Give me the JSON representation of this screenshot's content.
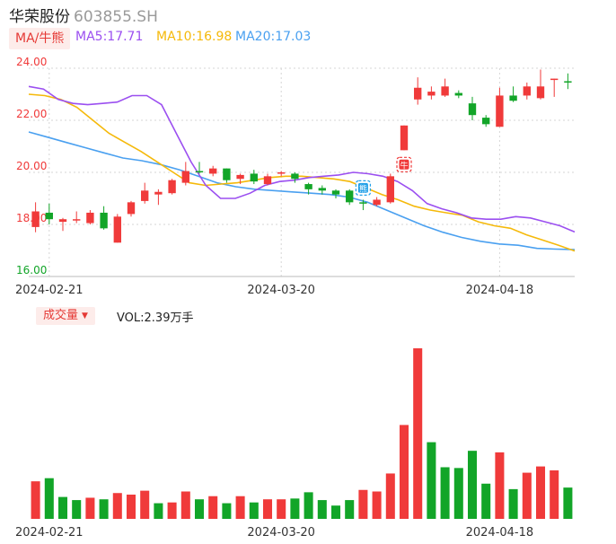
{
  "header": {
    "name": "华荣股份",
    "code": "603855.SH"
  },
  "ma_legend": {
    "tag": "MA/牛熊",
    "ma5": "MA5:17.71",
    "ma10": "MA10:16.98",
    "ma20": "MA20:17.03",
    "colors": {
      "ma5": "#9b4ff0",
      "ma10": "#f5b90a",
      "ma20": "#4aa0f0"
    }
  },
  "volume_panel": {
    "tag": "成交量",
    "vol_text": "VOL:2.39万手"
  },
  "colors": {
    "up": "#f03a3a",
    "down": "#12a528",
    "axis_text": "#f03a3a",
    "axis_text_low": "#12a528",
    "grid": "#d6d6d6"
  },
  "badges": {
    "bull_icon": "牛",
    "bear_icon": "熊"
  },
  "chart_data": [
    {
      "type": "candlestick",
      "title": "",
      "ylim": [
        16,
        24
      ],
      "yticks": [
        "24.00",
        "22.00",
        "20.00",
        "18.00",
        "16.00"
      ],
      "xticks": [
        {
          "label": "2024-02-21",
          "index": 1
        },
        {
          "label": "2024-03-20",
          "index": 18
        },
        {
          "label": "2024-04-18",
          "index": 34
        }
      ],
      "candles": [
        {
          "o": 17.9,
          "c": 18.5,
          "h": 18.85,
          "l": 17.7
        },
        {
          "o": 18.45,
          "c": 18.2,
          "h": 18.8,
          "l": 18.0
        },
        {
          "o": 18.1,
          "c": 18.2,
          "h": 18.25,
          "l": 17.75
        },
        {
          "o": 18.15,
          "c": 18.2,
          "h": 18.5,
          "l": 18.05
        },
        {
          "o": 18.05,
          "c": 18.45,
          "h": 18.55,
          "l": 18.0
        },
        {
          "o": 18.45,
          "c": 17.85,
          "h": 18.7,
          "l": 17.8
        },
        {
          "o": 17.3,
          "c": 18.3,
          "h": 18.4,
          "l": 17.3
        },
        {
          "o": 18.4,
          "c": 18.85,
          "h": 18.9,
          "l": 18.3
        },
        {
          "o": 18.9,
          "c": 19.3,
          "h": 19.6,
          "l": 18.8
        },
        {
          "o": 19.15,
          "c": 19.25,
          "h": 19.35,
          "l": 18.75
        },
        {
          "o": 19.2,
          "c": 19.7,
          "h": 19.75,
          "l": 19.15
        },
        {
          "o": 19.6,
          "c": 20.05,
          "h": 20.4,
          "l": 19.5
        },
        {
          "o": 20.05,
          "c": 20.0,
          "h": 20.4,
          "l": 19.95
        },
        {
          "o": 19.95,
          "c": 20.15,
          "h": 20.25,
          "l": 19.85
        },
        {
          "o": 20.15,
          "c": 19.7,
          "h": 20.15,
          "l": 19.6
        },
        {
          "o": 19.75,
          "c": 19.9,
          "h": 19.95,
          "l": 19.55
        },
        {
          "o": 19.95,
          "c": 19.65,
          "h": 20.1,
          "l": 19.55
        },
        {
          "o": 19.55,
          "c": 19.85,
          "h": 19.95,
          "l": 19.5
        },
        {
          "o": 19.95,
          "c": 20.0,
          "h": 20.05,
          "l": 19.85
        },
        {
          "o": 19.95,
          "c": 19.75,
          "h": 20.0,
          "l": 19.6
        },
        {
          "o": 19.55,
          "c": 19.35,
          "h": 19.6,
          "l": 19.15
        },
        {
          "o": 19.4,
          "c": 19.3,
          "h": 19.5,
          "l": 19.15
        },
        {
          "o": 19.3,
          "c": 19.15,
          "h": 19.35,
          "l": 19.0
        },
        {
          "o": 19.3,
          "c": 18.85,
          "h": 19.35,
          "l": 18.75
        },
        {
          "o": 18.85,
          "c": 18.8,
          "h": 18.95,
          "l": 18.55
        },
        {
          "o": 18.75,
          "c": 18.95,
          "h": 19.05,
          "l": 18.7
        },
        {
          "o": 18.85,
          "c": 19.85,
          "h": 19.95,
          "l": 18.8
        },
        {
          "o": 20.85,
          "c": 21.8,
          "h": 21.8,
          "l": 20.85
        },
        {
          "o": 22.8,
          "c": 23.25,
          "h": 23.65,
          "l": 22.6
        },
        {
          "o": 22.95,
          "c": 23.1,
          "h": 23.3,
          "l": 22.8
        },
        {
          "o": 22.95,
          "c": 23.3,
          "h": 23.6,
          "l": 22.9
        },
        {
          "o": 23.05,
          "c": 22.95,
          "h": 23.15,
          "l": 22.85
        },
        {
          "o": 22.65,
          "c": 22.2,
          "h": 22.9,
          "l": 22.0
        },
        {
          "o": 22.1,
          "c": 21.85,
          "h": 22.2,
          "l": 21.75
        },
        {
          "o": 21.75,
          "c": 22.95,
          "h": 23.25,
          "l": 21.75
        },
        {
          "o": 22.95,
          "c": 22.75,
          "h": 23.3,
          "l": 22.7
        },
        {
          "o": 22.95,
          "c": 23.3,
          "h": 23.45,
          "l": 22.8
        },
        {
          "o": 22.85,
          "c": 23.3,
          "h": 23.95,
          "l": 22.8
        },
        {
          "o": 23.55,
          "c": 23.6,
          "h": 23.6,
          "l": 22.9
        },
        {
          "o": 23.5,
          "c": 23.45,
          "h": 23.8,
          "l": 23.2
        }
      ],
      "ma_lines": [
        {
          "name": "MA5",
          "values": [
            23.3,
            23.2,
            22.8,
            22.65,
            22.6,
            22.65,
            22.7,
            22.95,
            22.95,
            22.6,
            21.5,
            20.4,
            19.5,
            19.0,
            19.0,
            19.2,
            19.5,
            19.65,
            19.7,
            19.8,
            19.85,
            19.9,
            20.0,
            19.95,
            19.85,
            19.65,
            19.3,
            18.8,
            18.6,
            18.45,
            18.25,
            18.2,
            18.2,
            18.3,
            18.25,
            18.1,
            17.95,
            17.71
          ]
        },
        {
          "name": "MA10",
          "values": [
            23.0,
            22.95,
            22.8,
            22.5,
            22.0,
            21.5,
            21.15,
            20.8,
            20.4,
            20.0,
            19.6,
            19.5,
            19.55,
            19.6,
            19.7,
            19.8,
            19.85,
            19.85,
            19.8,
            19.75,
            19.65,
            19.4,
            19.15,
            18.95,
            18.7,
            18.55,
            18.45,
            18.35,
            18.1,
            17.95,
            17.85,
            17.6,
            17.4,
            17.2,
            16.98
          ]
        },
        {
          "name": "MA20",
          "values": [
            21.55,
            21.35,
            21.15,
            20.95,
            20.75,
            20.55,
            20.45,
            20.3,
            20.1,
            19.85,
            19.6,
            19.45,
            19.35,
            19.3,
            19.25,
            19.2,
            19.15,
            19.05,
            18.85,
            18.55,
            18.25,
            17.95,
            17.7,
            17.5,
            17.35,
            17.25,
            17.2,
            17.08,
            17.05,
            17.03
          ]
        }
      ]
    },
    {
      "type": "bar",
      "title": "",
      "ylabel": "成交量",
      "values": [
        2.4,
        2.6,
        1.4,
        1.2,
        1.35,
        1.25,
        1.65,
        1.55,
        1.8,
        1.0,
        1.05,
        1.75,
        1.25,
        1.45,
        1.0,
        1.45,
        1.05,
        1.25,
        1.25,
        1.3,
        1.7,
        1.2,
        0.85,
        1.2,
        1.85,
        1.75,
        2.9,
        6.0,
        10.9,
        4.9,
        3.3,
        3.25,
        4.35,
        2.25,
        4.25,
        1.9,
        2.95,
        3.35,
        3.1,
        2.0
      ],
      "up": [
        true,
        false,
        false,
        false,
        true,
        false,
        true,
        true,
        true,
        false,
        true,
        true,
        false,
        true,
        false,
        true,
        false,
        true,
        true,
        false,
        false,
        false,
        false,
        false,
        true,
        true,
        true,
        true,
        true,
        false,
        false,
        false,
        false,
        false,
        true,
        false,
        true,
        true,
        true,
        false
      ]
    }
  ]
}
